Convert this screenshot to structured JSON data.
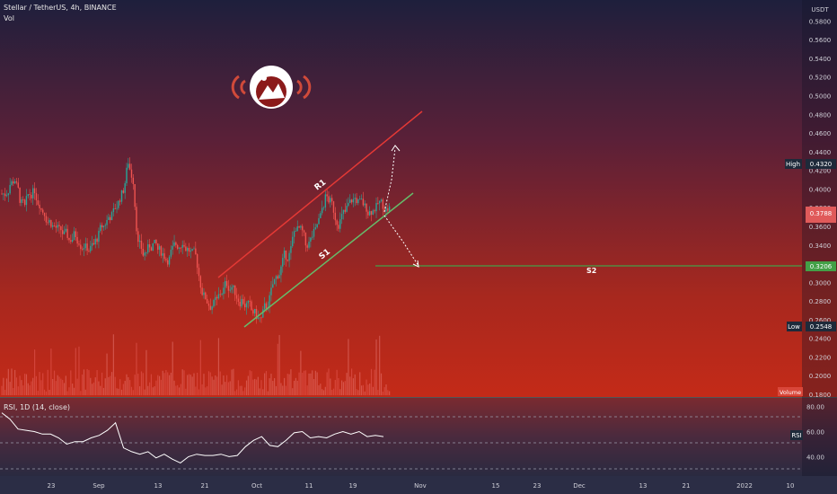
{
  "header": {
    "symbol_line": "Stellar / TetherUS, 4h, BINANCE",
    "volume_label": "Vol",
    "rsi_label": "RSI, 1D (14, close)"
  },
  "price_axis": {
    "currency": "USDT",
    "ticks": [
      "0.5800",
      "0.5600",
      "0.5400",
      "0.5200",
      "0.5000",
      "0.4800",
      "0.4600",
      "0.4400",
      "0.4200",
      "0.4000",
      "0.3800",
      "0.3600",
      "0.3400",
      "0.3200",
      "0.3000",
      "0.2800",
      "0.2600",
      "0.2400",
      "0.2200",
      "0.2000",
      "0.1800"
    ],
    "high_label": "High",
    "high_value": "0.4320",
    "low_label": "Low",
    "low_value": "0.2548",
    "last_value": "0.3788",
    "s2_value": "0.3206",
    "volume_tag": "Volume"
  },
  "rsi_axis": {
    "ticks": [
      "80.00",
      "60.00",
      "40.00"
    ],
    "tag": "RSI"
  },
  "time_axis": {
    "labels": [
      "23",
      "Sep",
      "13",
      "21",
      "Oct",
      "11",
      "19",
      "Nov",
      "15",
      "23",
      "Dec",
      "13",
      "21",
      "2022",
      "10"
    ]
  },
  "drawings": {
    "r1_label": "R1",
    "s1_label": "S1",
    "s2_label": "S2"
  },
  "colors": {
    "resistance": "#e53935",
    "support": "#66bb6a",
    "s2_line": "#43a047",
    "candle_up": "#26a69a",
    "candle_down": "#ef5350",
    "rsi_line": "#ffffff",
    "high_tag": "#1e2a3a",
    "last_tag": "#e05a5a",
    "s2_tag": "#43a047"
  },
  "chart_data": {
    "type": "candlestick",
    "price_ylim": [
      0.18,
      0.59
    ],
    "high": 0.432,
    "low": 0.2548,
    "last": 0.3788,
    "support_s2": 0.3206,
    "close_series": [
      0.395,
      0.405,
      0.41,
      0.39,
      0.38,
      0.395,
      0.4,
      0.385,
      0.375,
      0.365,
      0.36,
      0.355,
      0.35,
      0.345,
      0.35,
      0.345,
      0.34,
      0.335,
      0.34,
      0.35,
      0.36,
      0.37,
      0.375,
      0.385,
      0.4,
      0.43,
      0.41,
      0.34,
      0.33,
      0.335,
      0.34,
      0.335,
      0.33,
      0.325,
      0.335,
      0.34,
      0.345,
      0.335,
      0.33,
      0.32,
      0.29,
      0.28,
      0.275,
      0.28,
      0.29,
      0.3,
      0.295,
      0.285,
      0.28,
      0.275,
      0.27,
      0.265,
      0.26,
      0.275,
      0.29,
      0.305,
      0.315,
      0.33,
      0.335,
      0.36,
      0.355,
      0.34,
      0.345,
      0.355,
      0.37,
      0.39,
      0.385,
      0.37,
      0.365,
      0.375,
      0.385,
      0.39,
      0.385,
      0.38,
      0.375,
      0.38,
      0.385,
      0.38,
      0.3788
    ],
    "rsi_series": [
      75,
      70,
      62,
      61,
      60,
      58,
      58,
      55,
      50,
      52,
      52,
      55,
      57,
      61,
      67,
      47,
      44,
      42,
      44,
      39,
      42,
      38,
      35,
      40,
      42,
      41,
      41,
      42,
      40,
      41,
      48,
      53,
      56,
      49,
      48,
      53,
      59,
      60,
      55,
      56,
      55,
      58,
      60,
      58,
      60,
      56,
      57,
      56
    ],
    "rsi_ylim": [
      26,
      84
    ]
  }
}
